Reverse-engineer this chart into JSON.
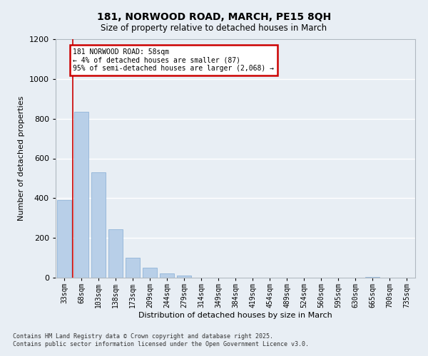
{
  "title_line1": "181, NORWOOD ROAD, MARCH, PE15 8QH",
  "title_line2": "Size of property relative to detached houses in March",
  "xlabel": "Distribution of detached houses by size in March",
  "ylabel": "Number of detached properties",
  "bar_categories": [
    "33sqm",
    "68sqm",
    "103sqm",
    "138sqm",
    "173sqm",
    "209sqm",
    "244sqm",
    "279sqm",
    "314sqm",
    "349sqm",
    "384sqm",
    "419sqm",
    "454sqm",
    "489sqm",
    "524sqm",
    "560sqm",
    "595sqm",
    "630sqm",
    "665sqm",
    "700sqm",
    "735sqm"
  ],
  "bar_heights": [
    390,
    835,
    530,
    243,
    100,
    50,
    20,
    10,
    0,
    0,
    0,
    0,
    0,
    0,
    0,
    0,
    0,
    0,
    5,
    0,
    0
  ],
  "bar_color": "#b8cfe8",
  "bar_edge_color": "#90b4d8",
  "ylim": [
    0,
    1200
  ],
  "yticks": [
    0,
    200,
    400,
    600,
    800,
    1000,
    1200
  ],
  "annotation_line1": "181 NORWOOD ROAD: 58sqm",
  "annotation_line2": "← 4% of detached houses are smaller (87)",
  "annotation_line3": "95% of semi-detached houses are larger (2,068) →",
  "vline_color": "#cc0000",
  "annotation_box_edge": "#cc0000",
  "footer_line1": "Contains HM Land Registry data © Crown copyright and database right 2025.",
  "footer_line2": "Contains public sector information licensed under the Open Government Licence v3.0.",
  "background_color": "#e8eef4",
  "grid_color": "#ffffff",
  "plot_bg_color": "#e8eef4"
}
